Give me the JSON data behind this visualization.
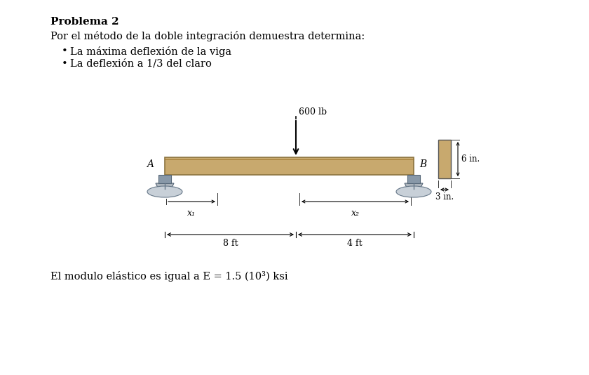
{
  "title": "Problema 2",
  "intro_text": "Por el método de la doble integración demuestra determina:",
  "bullet1": "La máxima deflexión de la viga",
  "bullet2": "La deflexión a 1/3 del claro",
  "modulo_text": "El modulo elástico es igual a E = 1.5 (10³) ksi",
  "load_label": "600 lb",
  "label_A": "A",
  "label_B": "B",
  "dim1_label": "8 ft",
  "dim2_label": "4 ft",
  "x1_label": "x₁",
  "x2_label": "x₂",
  "section_height_label": "6 in.",
  "section_width_label": "3 in.",
  "beam_color": "#C8A96E",
  "beam_outline": "#8B7340",
  "beam_dark": "#A07830",
  "support_body": "#b0b8c0",
  "support_pin": "#8898a8",
  "support_base": "#c8d0d8",
  "background_color": "#ffffff",
  "text_color": "#000000"
}
